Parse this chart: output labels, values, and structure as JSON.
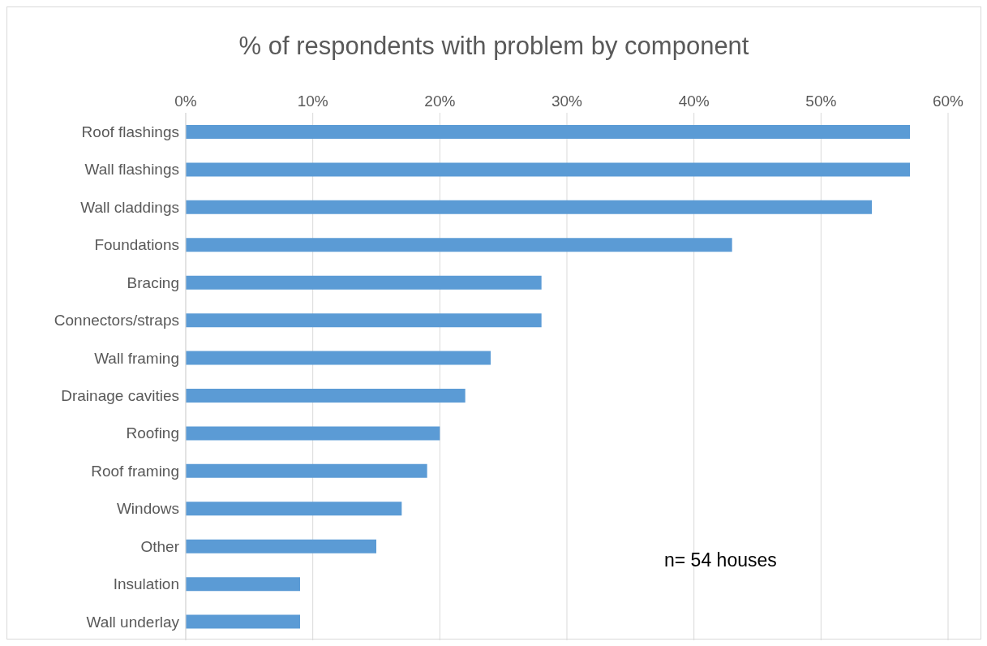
{
  "chart_data": {
    "type": "bar",
    "orientation": "horizontal",
    "title": "% of respondents with problem by component",
    "categories": [
      "Roof flashings",
      "Wall flashings",
      "Wall claddings",
      "Foundations",
      "Bracing",
      "Connectors/straps",
      "Wall framing",
      "Drainage cavities",
      "Roofing",
      "Roof framing",
      "Windows",
      "Other",
      "Insulation",
      "Wall underlay"
    ],
    "values": [
      57,
      57,
      54,
      43,
      28,
      28,
      24,
      22,
      20,
      19,
      17,
      15,
      9,
      9
    ],
    "color": "#5b9bd5",
    "xlim": [
      0,
      60
    ],
    "xticks": [
      {
        "value": 0,
        "label": "0%"
      },
      {
        "value": 10,
        "label": "10%"
      },
      {
        "value": 20,
        "label": "20%"
      },
      {
        "value": 30,
        "label": "30%"
      },
      {
        "value": 40,
        "label": "40%"
      },
      {
        "value": 50,
        "label": "50%"
      },
      {
        "value": 60,
        "label": "60%"
      }
    ],
    "grid": "x",
    "legend": false,
    "annotations": [
      "n= 54 houses"
    ]
  }
}
